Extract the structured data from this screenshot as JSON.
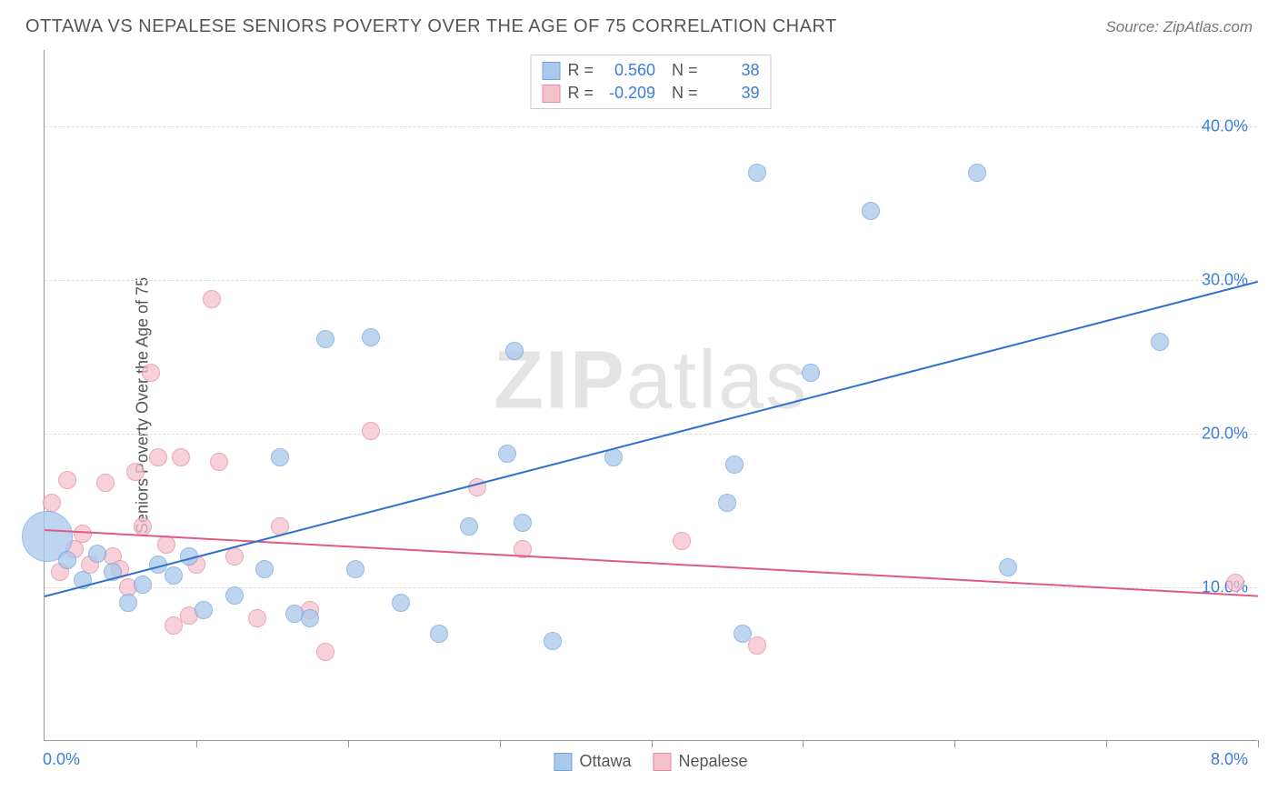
{
  "header": {
    "title": "OTTAWA VS NEPALESE SENIORS POVERTY OVER THE AGE OF 75 CORRELATION CHART",
    "source": "Source: ZipAtlas.com"
  },
  "chart": {
    "type": "scatter",
    "y_axis_label": "Seniors Poverty Over the Age of 75",
    "xlim": [
      0,
      8
    ],
    "ylim": [
      0,
      45
    ],
    "x_tick_labels": {
      "min": "0.0%",
      "max": "8.0%"
    },
    "y_ticks": [
      {
        "value": 10,
        "label": "10.0%"
      },
      {
        "value": 20,
        "label": "20.0%"
      },
      {
        "value": 30,
        "label": "30.0%"
      },
      {
        "value": 40,
        "label": "40.0%"
      }
    ],
    "x_tick_positions": [
      0,
      1,
      2,
      3,
      4,
      5,
      6,
      7,
      8
    ],
    "background_color": "#ffffff",
    "grid_color": "#dddddd",
    "axis_color": "#999999",
    "series": {
      "ottawa": {
        "label": "Ottawa",
        "point_fill": "#a9c8ec",
        "point_stroke": "#6fa3df",
        "line_color": "#2f6fd0",
        "R": "0.560",
        "N": "38",
        "points": [
          {
            "x": 0.02,
            "y": 13.3,
            "r": 28
          },
          {
            "x": 0.15,
            "y": 11.8,
            "r": 10
          },
          {
            "x": 0.25,
            "y": 10.5,
            "r": 10
          },
          {
            "x": 0.35,
            "y": 12.2,
            "r": 10
          },
          {
            "x": 0.45,
            "y": 11.0,
            "r": 10
          },
          {
            "x": 0.55,
            "y": 9.0,
            "r": 10
          },
          {
            "x": 0.65,
            "y": 10.2,
            "r": 10
          },
          {
            "x": 0.75,
            "y": 11.5,
            "r": 10
          },
          {
            "x": 0.85,
            "y": 10.8,
            "r": 10
          },
          {
            "x": 0.95,
            "y": 12.0,
            "r": 10
          },
          {
            "x": 1.05,
            "y": 8.5,
            "r": 10
          },
          {
            "x": 1.25,
            "y": 9.5,
            "r": 10
          },
          {
            "x": 1.45,
            "y": 11.2,
            "r": 10
          },
          {
            "x": 1.55,
            "y": 18.5,
            "r": 10
          },
          {
            "x": 1.65,
            "y": 8.3,
            "r": 10
          },
          {
            "x": 1.75,
            "y": 8.0,
            "r": 10
          },
          {
            "x": 1.85,
            "y": 26.2,
            "r": 10
          },
          {
            "x": 2.05,
            "y": 11.2,
            "r": 10
          },
          {
            "x": 2.15,
            "y": 26.3,
            "r": 10
          },
          {
            "x": 2.35,
            "y": 9.0,
            "r": 10
          },
          {
            "x": 2.6,
            "y": 7.0,
            "r": 10
          },
          {
            "x": 2.8,
            "y": 14.0,
            "r": 10
          },
          {
            "x": 3.05,
            "y": 18.7,
            "r": 10
          },
          {
            "x": 3.1,
            "y": 25.4,
            "r": 10
          },
          {
            "x": 3.15,
            "y": 14.2,
            "r": 10
          },
          {
            "x": 3.35,
            "y": 6.5,
            "r": 10
          },
          {
            "x": 3.75,
            "y": 18.5,
            "r": 10
          },
          {
            "x": 4.5,
            "y": 15.5,
            "r": 10
          },
          {
            "x": 4.55,
            "y": 18.0,
            "r": 10
          },
          {
            "x": 4.6,
            "y": 7.0,
            "r": 10
          },
          {
            "x": 4.7,
            "y": 37.0,
            "r": 10
          },
          {
            "x": 5.05,
            "y": 24.0,
            "r": 10
          },
          {
            "x": 5.45,
            "y": 34.5,
            "r": 10
          },
          {
            "x": 6.15,
            "y": 37.0,
            "r": 10
          },
          {
            "x": 6.35,
            "y": 11.3,
            "r": 10
          },
          {
            "x": 7.35,
            "y": 26.0,
            "r": 10
          }
        ],
        "trend": {
          "x1": 0,
          "y1": 9.5,
          "x2": 8,
          "y2": 30.0
        }
      },
      "nepalese": {
        "label": "Nepalese",
        "point_fill": "#f5c1cd",
        "point_stroke": "#e38aa3",
        "line_color": "#e05a84",
        "R": "-0.209",
        "N": "39",
        "points": [
          {
            "x": 0.05,
            "y": 15.5,
            "r": 10
          },
          {
            "x": 0.1,
            "y": 11.0,
            "r": 10
          },
          {
            "x": 0.15,
            "y": 17.0,
            "r": 10
          },
          {
            "x": 0.2,
            "y": 12.5,
            "r": 10
          },
          {
            "x": 0.25,
            "y": 13.5,
            "r": 10
          },
          {
            "x": 0.3,
            "y": 11.5,
            "r": 10
          },
          {
            "x": 0.4,
            "y": 16.8,
            "r": 10
          },
          {
            "x": 0.45,
            "y": 12.0,
            "r": 10
          },
          {
            "x": 0.5,
            "y": 11.2,
            "r": 10
          },
          {
            "x": 0.55,
            "y": 10.0,
            "r": 10
          },
          {
            "x": 0.6,
            "y": 17.5,
            "r": 10
          },
          {
            "x": 0.65,
            "y": 14.0,
            "r": 10
          },
          {
            "x": 0.7,
            "y": 24.0,
            "r": 10
          },
          {
            "x": 0.75,
            "y": 18.5,
            "r": 10
          },
          {
            "x": 0.8,
            "y": 12.8,
            "r": 10
          },
          {
            "x": 0.85,
            "y": 7.5,
            "r": 10
          },
          {
            "x": 0.9,
            "y": 18.5,
            "r": 10
          },
          {
            "x": 0.95,
            "y": 8.2,
            "r": 10
          },
          {
            "x": 1.0,
            "y": 11.5,
            "r": 10
          },
          {
            "x": 1.1,
            "y": 28.8,
            "r": 10
          },
          {
            "x": 1.15,
            "y": 18.2,
            "r": 10
          },
          {
            "x": 1.25,
            "y": 12.0,
            "r": 10
          },
          {
            "x": 1.4,
            "y": 8.0,
            "r": 10
          },
          {
            "x": 1.55,
            "y": 14.0,
            "r": 10
          },
          {
            "x": 1.75,
            "y": 8.5,
            "r": 10
          },
          {
            "x": 1.85,
            "y": 5.8,
            "r": 10
          },
          {
            "x": 2.15,
            "y": 20.2,
            "r": 10
          },
          {
            "x": 2.85,
            "y": 16.5,
            "r": 10
          },
          {
            "x": 3.15,
            "y": 12.5,
            "r": 10
          },
          {
            "x": 4.2,
            "y": 13.0,
            "r": 10
          },
          {
            "x": 4.7,
            "y": 6.2,
            "r": 10
          },
          {
            "x": 7.85,
            "y": 10.3,
            "r": 10
          }
        ],
        "trend": {
          "x1": 0,
          "y1": 13.8,
          "x2": 8,
          "y2": 9.5
        }
      }
    }
  },
  "watermark": {
    "bold": "ZIP",
    "rest": "atlas"
  }
}
